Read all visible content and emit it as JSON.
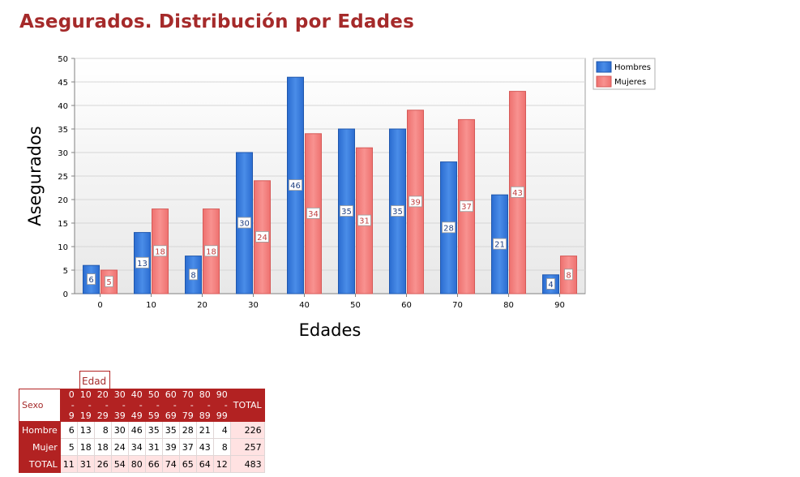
{
  "page": {
    "title": "Asegurados. Distribución por Edades"
  },
  "colors": {
    "title": "#a52a2a",
    "hombres": "#2e74d8",
    "mujeres": "#f07a78",
    "header_bg": "#b22222",
    "total_bg": "#ffe2e2"
  },
  "chart_data": {
    "type": "bar",
    "categories": [
      "0",
      "10",
      "20",
      "30",
      "40",
      "50",
      "60",
      "70",
      "80",
      "90"
    ],
    "series": [
      {
        "name": "Hombres",
        "values": [
          6,
          13,
          8,
          30,
          46,
          35,
          35,
          28,
          21,
          4
        ]
      },
      {
        "name": "Mujeres",
        "values": [
          5,
          18,
          18,
          24,
          34,
          31,
          39,
          37,
          43,
          8
        ]
      }
    ],
    "xlabel": "Edades",
    "ylabel": "Asegurados",
    "ylim": [
      0,
      50
    ],
    "yticks": [
      0,
      5,
      10,
      15,
      20,
      25,
      30,
      35,
      40,
      45,
      50
    ],
    "grid": true,
    "legend": "top-right",
    "data_labels": true
  },
  "table": {
    "column_group_label": "Edad",
    "row_header_label": "Sexo",
    "columns": [
      "0 - 9",
      "10 - 19",
      "20 - 29",
      "30 - 39",
      "40 - 49",
      "50 - 59",
      "60 - 69",
      "70 - 79",
      "80 - 89",
      "90 - 99"
    ],
    "total_label": "TOTAL",
    "rows": [
      {
        "label": "Hombre",
        "values": [
          "6",
          "13",
          "8",
          "30",
          "46",
          "35",
          "35",
          "28",
          "21",
          "4"
        ],
        "total": "226"
      },
      {
        "label": "Mujer",
        "values": [
          "5",
          "18",
          "18",
          "24",
          "34",
          "31",
          "39",
          "37",
          "43",
          "8"
        ],
        "total": "257"
      }
    ],
    "totals_row": {
      "label": "TOTAL",
      "values": [
        "11",
        "31",
        "26",
        "54",
        "80",
        "66",
        "74",
        "65",
        "64",
        "12"
      ],
      "total": "483"
    }
  }
}
